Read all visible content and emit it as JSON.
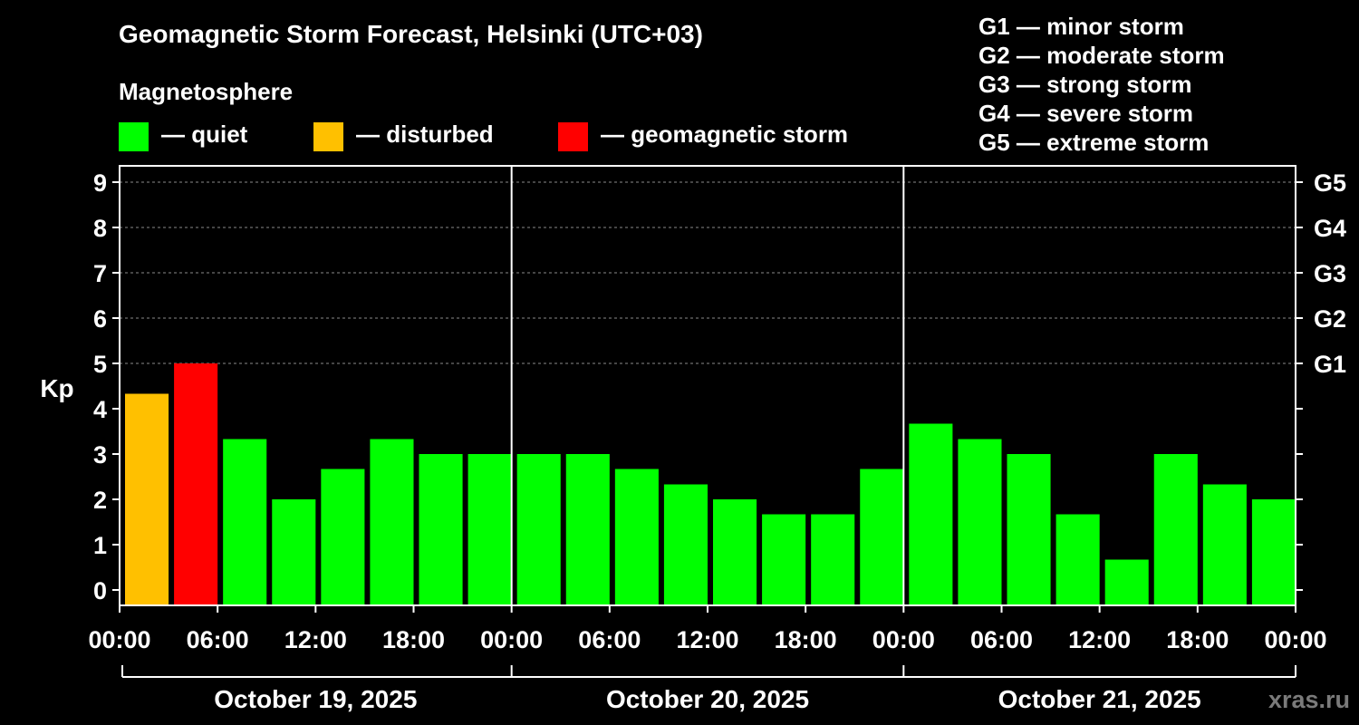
{
  "title": "Geomagnetic Storm Forecast, Helsinki (UTC+03)",
  "legend": {
    "heading": "Magnetosphere",
    "items": [
      {
        "label": "— quiet",
        "color": "#00ff00"
      },
      {
        "label": "— disturbed",
        "color": "#ffc000"
      },
      {
        "label": "— geomagnetic storm",
        "color": "#ff0000"
      }
    ],
    "storm_scale": [
      "G1 — minor storm",
      "G2 — moderate storm",
      "G3 — strong storm",
      "G4 — severe storm",
      "G5 — extreme storm"
    ]
  },
  "source": "xras.ru",
  "chart_data": {
    "type": "bar",
    "ylabel": "Kp",
    "ylim": [
      0,
      9
    ],
    "yticks": [
      0,
      1,
      2,
      3,
      4,
      5,
      6,
      7,
      8,
      9
    ],
    "right_ticks": [
      {
        "value": 5,
        "label": "G1"
      },
      {
        "value": 6,
        "label": "G2"
      },
      {
        "value": 7,
        "label": "G3"
      },
      {
        "value": 8,
        "label": "G4"
      },
      {
        "value": 9,
        "label": "G5"
      }
    ],
    "dashed_grid": [
      5,
      6,
      7,
      8,
      9
    ],
    "xticks": [
      "00:00",
      "06:00",
      "12:00",
      "18:00",
      "00:00",
      "06:00",
      "12:00",
      "18:00",
      "00:00",
      "06:00",
      "12:00",
      "18:00",
      "00:00"
    ],
    "days": [
      "October 19, 2025",
      "October 20, 2025",
      "October 21, 2025"
    ],
    "thresholds": {
      "disturbed": 4,
      "storm": 5
    },
    "colors": {
      "quiet": "#00ff00",
      "disturbed": "#ffc000",
      "storm": "#ff0000"
    },
    "values": [
      4.33,
      5.0,
      3.33,
      2.0,
      2.67,
      3.33,
      3.0,
      3.0,
      3.0,
      3.0,
      2.67,
      2.33,
      2.0,
      1.67,
      1.67,
      2.67,
      3.67,
      3.33,
      3.0,
      1.67,
      0.67,
      3.0,
      2.33,
      2.0
    ]
  }
}
